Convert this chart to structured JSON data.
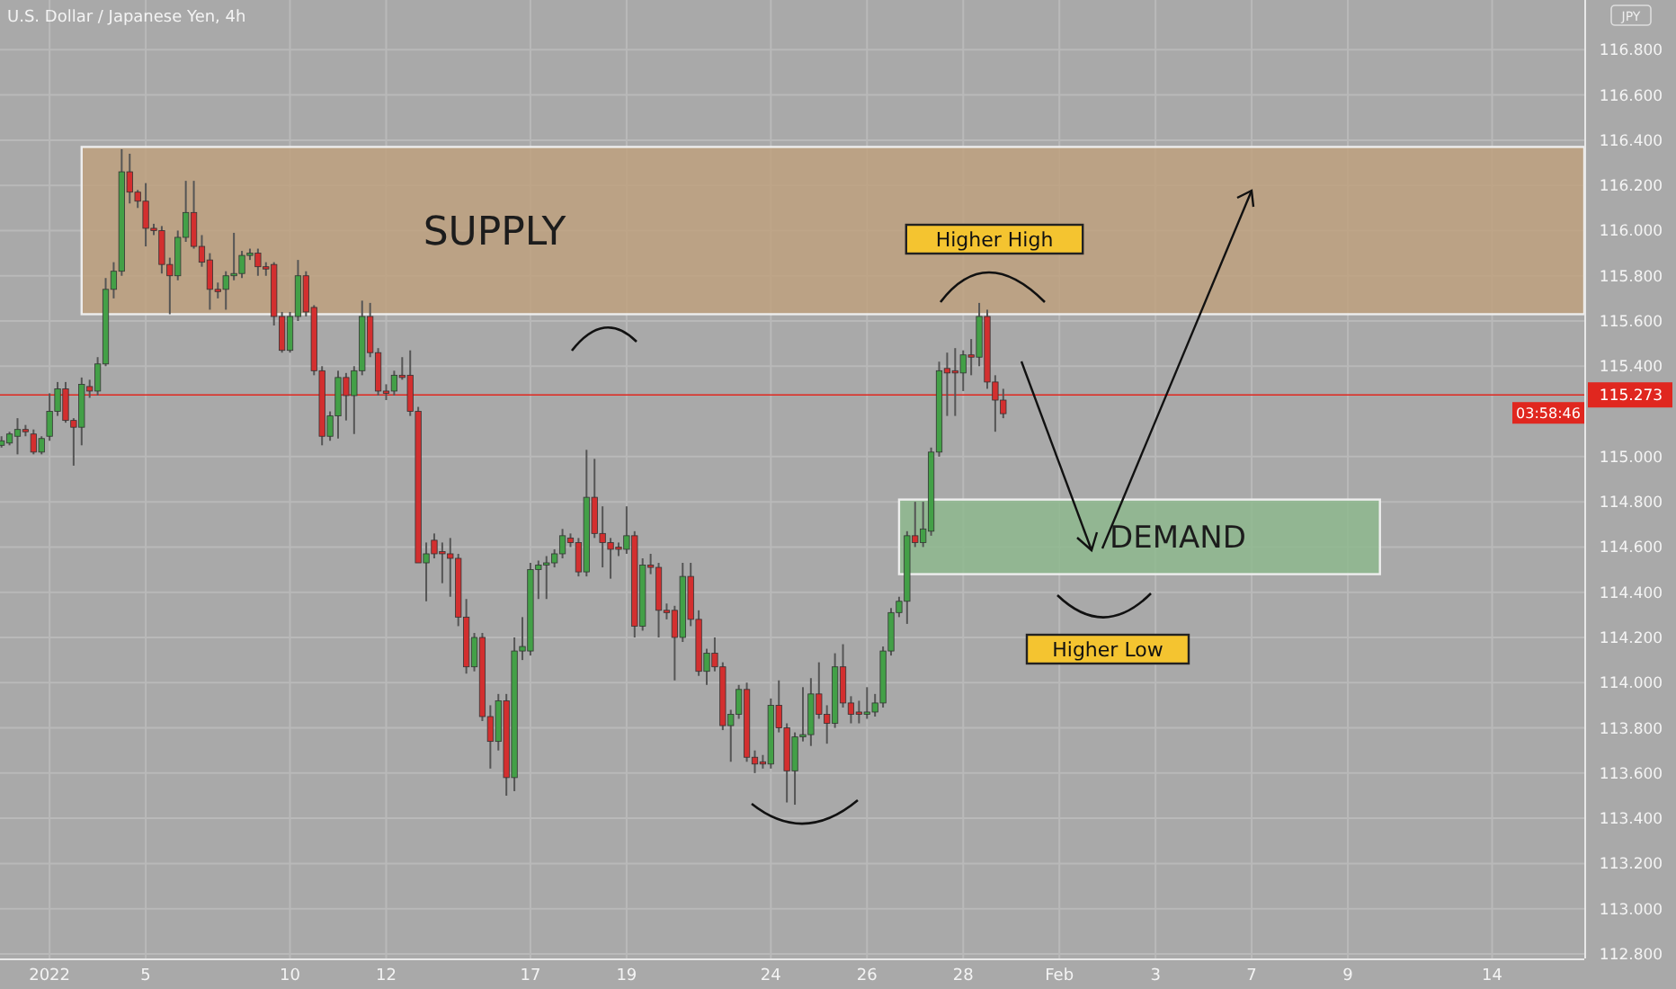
{
  "chart_data": {
    "type": "candlestick",
    "title": "U.S. Dollar / Japanese Yen, 4h",
    "categories": [
      null,
      null,
      null,
      null,
      null,
      null,
      "2022",
      null,
      null,
      null,
      null,
      null,
      null,
      null,
      null,
      null,
      null,
      null,
      "5",
      null,
      null,
      null,
      null,
      null,
      null,
      null,
      null,
      null,
      null,
      null,
      null,
      null,
      null,
      null,
      null,
      null,
      "10",
      null,
      null,
      null,
      null,
      null,
      null,
      null,
      null,
      null,
      null,
      null,
      "12",
      null,
      null,
      null,
      null,
      null,
      null,
      null,
      null,
      null,
      null,
      null,
      null,
      null,
      null,
      null,
      null,
      null,
      "17",
      null,
      null,
      null,
      null,
      null,
      null,
      null,
      null,
      null,
      null,
      null,
      "19",
      null,
      null,
      null,
      null,
      null,
      null,
      null,
      null,
      null,
      null,
      null,
      null,
      null,
      null,
      null,
      null,
      null,
      "24",
      null,
      null,
      null,
      null,
      null,
      null,
      null,
      null,
      null,
      null,
      null,
      "26",
      null,
      null,
      null,
      null,
      null,
      null,
      null,
      null,
      null,
      null,
      null,
      "28",
      null,
      null,
      null,
      null,
      null,
      null,
      null,
      null,
      null,
      null,
      null,
      "Feb",
      null,
      null,
      null,
      null,
      null,
      null,
      null,
      null,
      null,
      null,
      null,
      "3",
      null,
      null,
      null,
      null,
      null,
      null,
      null,
      null,
      null,
      null,
      null,
      "7",
      null,
      null,
      null,
      null,
      null,
      null,
      null,
      null,
      null,
      null,
      null,
      "9",
      null,
      null,
      null,
      null,
      null,
      null,
      null,
      null,
      null,
      null,
      null,
      null,
      null,
      null,
      null,
      null,
      null,
      "14",
      null,
      null,
      null,
      null,
      null,
      null,
      null,
      null,
      null,
      null,
      null
    ],
    "ohlc": [
      [
        115.05,
        115.09,
        115.04,
        115.07
      ],
      [
        115.06,
        115.11,
        115.05,
        115.1
      ],
      [
        115.09,
        115.17,
        115.01,
        115.12
      ],
      [
        115.12,
        115.14,
        115.09,
        115.11
      ],
      [
        115.1,
        115.12,
        115.01,
        115.02
      ],
      [
        115.02,
        115.09,
        115.01,
        115.08
      ],
      [
        115.09,
        115.28,
        115.07,
        115.2
      ],
      [
        115.2,
        115.33,
        115.18,
        115.3
      ],
      [
        115.3,
        115.33,
        115.15,
        115.16
      ],
      [
        115.16,
        115.17,
        114.96,
        115.13
      ],
      [
        115.13,
        115.35,
        115.05,
        115.32
      ],
      [
        115.31,
        115.34,
        115.26,
        115.29
      ],
      [
        115.29,
        115.44,
        115.27,
        115.41
      ],
      [
        115.41,
        115.79,
        115.4,
        115.74
      ],
      [
        115.74,
        115.86,
        115.7,
        115.82
      ],
      [
        115.82,
        116.36,
        115.8,
        116.26
      ],
      [
        116.26,
        116.34,
        116.12,
        116.17
      ],
      [
        116.17,
        116.18,
        116.1,
        116.13
      ],
      [
        116.13,
        116.21,
        115.93,
        116.01
      ],
      [
        116.01,
        116.03,
        115.98,
        116.0
      ],
      [
        116.0,
        116.02,
        115.81,
        115.85
      ],
      [
        115.85,
        115.88,
        115.63,
        115.8
      ],
      [
        115.8,
        116.0,
        115.78,
        115.97
      ],
      [
        115.97,
        116.22,
        115.95,
        116.08
      ],
      [
        116.08,
        116.22,
        115.92,
        115.93
      ],
      [
        115.93,
        115.98,
        115.84,
        115.86
      ],
      [
        115.87,
        115.9,
        115.65,
        115.74
      ],
      [
        115.74,
        115.77,
        115.7,
        115.73
      ],
      [
        115.74,
        115.82,
        115.65,
        115.8
      ],
      [
        115.8,
        115.99,
        115.78,
        115.81
      ],
      [
        115.81,
        115.91,
        115.79,
        115.89
      ],
      [
        115.89,
        115.92,
        115.87,
        115.9
      ],
      [
        115.9,
        115.92,
        115.8,
        115.84
      ],
      [
        115.84,
        115.86,
        115.8,
        115.83
      ],
      [
        115.85,
        115.86,
        115.58,
        115.62
      ],
      [
        115.62,
        115.64,
        115.46,
        115.47
      ],
      [
        115.47,
        115.64,
        115.46,
        115.62
      ],
      [
        115.62,
        115.87,
        115.6,
        115.8
      ],
      [
        115.8,
        115.82,
        115.62,
        115.64
      ],
      [
        115.66,
        115.67,
        115.36,
        115.38
      ],
      [
        115.38,
        115.4,
        115.05,
        115.09
      ],
      [
        115.09,
        115.2,
        115.07,
        115.18
      ],
      [
        115.18,
        115.38,
        115.08,
        115.35
      ],
      [
        115.35,
        115.37,
        115.16,
        115.27
      ],
      [
        115.27,
        115.4,
        115.1,
        115.38
      ],
      [
        115.38,
        115.69,
        115.36,
        115.62
      ],
      [
        115.62,
        115.68,
        115.44,
        115.46
      ],
      [
        115.46,
        115.48,
        115.27,
        115.29
      ],
      [
        115.29,
        115.32,
        115.25,
        115.28
      ],
      [
        115.29,
        115.38,
        115.27,
        115.36
      ],
      [
        115.36,
        115.44,
        115.34,
        115.35
      ],
      [
        115.36,
        115.47,
        115.18,
        115.2
      ],
      [
        115.2,
        115.22,
        114.53,
        114.53
      ],
      [
        114.53,
        114.62,
        114.36,
        114.57
      ],
      [
        114.63,
        114.66,
        114.55,
        114.57
      ],
      [
        114.58,
        114.62,
        114.44,
        114.57
      ],
      [
        114.57,
        114.64,
        114.38,
        114.55
      ],
      [
        114.55,
        114.57,
        114.25,
        114.29
      ],
      [
        114.29,
        114.37,
        114.04,
        114.07
      ],
      [
        114.07,
        114.22,
        114.05,
        114.2
      ],
      [
        114.2,
        114.22,
        113.83,
        113.85
      ],
      [
        113.85,
        113.9,
        113.62,
        113.74
      ],
      [
        113.74,
        113.95,
        113.7,
        113.92
      ],
      [
        113.92,
        113.95,
        113.5,
        113.58
      ],
      [
        113.58,
        114.2,
        113.52,
        114.14
      ],
      [
        114.14,
        114.29,
        114.1,
        114.16
      ],
      [
        114.14,
        114.53,
        114.12,
        114.5
      ],
      [
        114.5,
        114.54,
        114.37,
        114.52
      ],
      [
        114.52,
        114.56,
        114.37,
        114.53
      ],
      [
        114.53,
        114.59,
        114.51,
        114.57
      ],
      [
        114.57,
        114.68,
        114.55,
        114.65
      ],
      [
        114.64,
        114.66,
        114.6,
        114.62
      ],
      [
        114.62,
        114.64,
        114.47,
        114.49
      ],
      [
        114.49,
        115.03,
        114.47,
        114.82
      ],
      [
        114.82,
        114.99,
        114.64,
        114.66
      ],
      [
        114.66,
        114.78,
        114.51,
        114.62
      ],
      [
        114.62,
        114.64,
        114.46,
        114.59
      ],
      [
        114.6,
        114.62,
        114.56,
        114.59
      ],
      [
        114.59,
        114.78,
        114.57,
        114.65
      ],
      [
        114.65,
        114.67,
        114.2,
        114.25
      ],
      [
        114.25,
        114.55,
        114.23,
        114.52
      ],
      [
        114.52,
        114.57,
        114.48,
        114.51
      ],
      [
        114.51,
        114.53,
        114.2,
        114.32
      ],
      [
        114.32,
        114.35,
        114.28,
        114.31
      ],
      [
        114.32,
        114.34,
        114.01,
        114.2
      ],
      [
        114.2,
        114.53,
        114.18,
        114.47
      ],
      [
        114.47,
        114.53,
        114.25,
        114.28
      ],
      [
        114.28,
        114.32,
        114.03,
        114.05
      ],
      [
        114.05,
        114.15,
        113.99,
        114.13
      ],
      [
        114.13,
        114.2,
        114.05,
        114.07
      ],
      [
        114.07,
        114.09,
        113.79,
        113.81
      ],
      [
        113.81,
        113.88,
        113.65,
        113.86
      ],
      [
        113.86,
        113.99,
        113.84,
        113.97
      ],
      [
        113.97,
        114.0,
        113.65,
        113.67
      ],
      [
        113.67,
        113.7,
        113.6,
        113.64
      ],
      [
        113.65,
        113.68,
        113.62,
        113.64
      ],
      [
        113.64,
        113.93,
        113.62,
        113.9
      ],
      [
        113.9,
        114.01,
        113.78,
        113.8
      ],
      [
        113.8,
        113.82,
        113.47,
        113.61
      ],
      [
        113.61,
        113.78,
        113.46,
        113.76
      ],
      [
        113.76,
        113.98,
        113.74,
        113.77
      ],
      [
        113.77,
        114.02,
        113.72,
        113.95
      ],
      [
        113.95,
        114.09,
        113.84,
        113.86
      ],
      [
        113.86,
        113.9,
        113.73,
        113.82
      ],
      [
        113.82,
        114.13,
        113.8,
        114.07
      ],
      [
        114.07,
        114.17,
        113.89,
        113.91
      ],
      [
        113.91,
        113.94,
        113.82,
        113.86
      ],
      [
        113.87,
        113.92,
        113.82,
        113.86
      ],
      [
        113.86,
        113.98,
        113.84,
        113.87
      ],
      [
        113.87,
        113.95,
        113.85,
        113.91
      ],
      [
        113.91,
        114.16,
        113.89,
        114.14
      ],
      [
        114.14,
        114.33,
        114.12,
        114.31
      ],
      [
        114.31,
        114.38,
        114.29,
        114.36
      ],
      [
        114.36,
        114.67,
        114.26,
        114.65
      ],
      [
        114.65,
        114.8,
        114.6,
        114.62
      ],
      [
        114.62,
        114.8,
        114.6,
        114.68
      ],
      [
        114.67,
        115.04,
        114.65,
        115.02
      ],
      [
        115.02,
        115.42,
        115.0,
        115.38
      ],
      [
        115.39,
        115.46,
        115.18,
        115.37
      ],
      [
        115.38,
        115.48,
        115.18,
        115.37
      ],
      [
        115.37,
        115.47,
        115.29,
        115.45
      ],
      [
        115.45,
        115.52,
        115.36,
        115.44
      ],
      [
        115.44,
        115.68,
        115.4,
        115.62
      ],
      [
        115.62,
        115.65,
        115.3,
        115.33
      ],
      [
        115.33,
        115.36,
        115.11,
        115.25
      ],
      [
        115.25,
        115.3,
        115.17,
        115.19
      ],
      null,
      null,
      null,
      null,
      null,
      null,
      null,
      null,
      null,
      null,
      null,
      null,
      null,
      null,
      null,
      null,
      null,
      null,
      null,
      null,
      null,
      null,
      null,
      null,
      null,
      null,
      null,
      null,
      null,
      null,
      null,
      null,
      null,
      null,
      null,
      null,
      null,
      null,
      null,
      null,
      null,
      null,
      null,
      null,
      null,
      null,
      null,
      null,
      null,
      null,
      null,
      null,
      null,
      null,
      null,
      null,
      null,
      null,
      null,
      null,
      null,
      null,
      null,
      null,
      null,
      null,
      null,
      null,
      null,
      null,
      null,
      null
    ],
    "ylim": [
      112.78,
      117.02
    ],
    "yticks": [
      {
        "value": 112.8,
        "label": "112.800"
      },
      {
        "value": 113.0,
        "label": "113.000"
      },
      {
        "value": 113.2,
        "label": "113.200"
      },
      {
        "value": 113.4,
        "label": "113.400"
      },
      {
        "value": 113.6,
        "label": "113.600"
      },
      {
        "value": 113.8,
        "label": "113.800"
      },
      {
        "value": 114.0,
        "label": "114.000"
      },
      {
        "value": 114.2,
        "label": "114.200"
      },
      {
        "value": 114.4,
        "label": "114.400"
      },
      {
        "value": 114.6,
        "label": "114.600"
      },
      {
        "value": 114.8,
        "label": "114.800"
      },
      {
        "value": 115.0,
        "label": "115.000"
      },
      {
        "value": 115.4,
        "label": "115.400"
      },
      {
        "value": 115.6,
        "label": "115.600"
      },
      {
        "value": 115.8,
        "label": "115.800"
      },
      {
        "value": 116.0,
        "label": "116.000"
      },
      {
        "value": 116.2,
        "label": "116.200"
      },
      {
        "value": 116.4,
        "label": "116.400"
      },
      {
        "value": 116.6,
        "label": "116.600"
      },
      {
        "value": 116.8,
        "label": "116.800"
      }
    ],
    "grid": true,
    "bands": [
      {
        "axis": "y",
        "from": 115.63,
        "to": 116.37,
        "label": "SUPPLY",
        "color": "#bfa07c"
      },
      {
        "axis": "y",
        "from": 114.48,
        "to": 114.81,
        "label": "DEMAND",
        "color": "#8cb98c"
      }
    ],
    "ref_lines": [
      {
        "axis": "y",
        "value": 115.273,
        "label": "115.273",
        "color": "#e0271f"
      }
    ],
    "annotations": [
      "Higher High",
      "Higher Low",
      "JPY",
      "03:58:46"
    ]
  }
}
